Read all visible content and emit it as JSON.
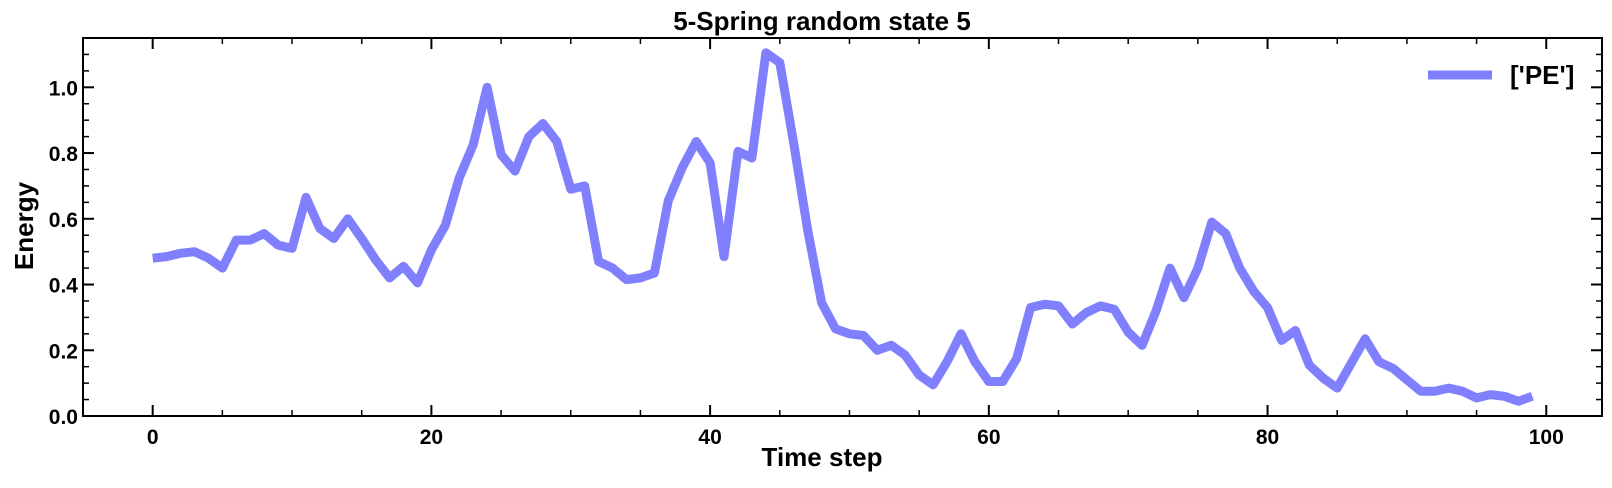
{
  "chart_data": {
    "type": "line",
    "title": "5-Spring random state 5",
    "xlabel": "Time step",
    "ylabel": "Energy",
    "xlim": [
      -5,
      104
    ],
    "ylim": [
      0,
      1.15
    ],
    "xticks": [
      0,
      20,
      40,
      60,
      80,
      100
    ],
    "xtick_labels": [
      "0",
      "20",
      "40",
      "60",
      "80",
      "100"
    ],
    "yticks": [
      0.0,
      0.2,
      0.4,
      0.6,
      0.8,
      1.0
    ],
    "ytick_labels": [
      "0.0",
      "0.2",
      "0.4",
      "0.6",
      "0.8",
      "1.0"
    ],
    "grid": false,
    "legend_position": "top-right",
    "series": [
      {
        "name": "['PE']",
        "color": "#8080ff",
        "x": [
          0,
          1,
          2,
          3,
          4,
          5,
          6,
          7,
          8,
          9,
          10,
          11,
          12,
          13,
          14,
          15,
          16,
          17,
          18,
          19,
          20,
          21,
          22,
          23,
          24,
          25,
          26,
          27,
          28,
          29,
          30,
          31,
          32,
          33,
          34,
          35,
          36,
          37,
          38,
          39,
          40,
          41,
          42,
          43,
          44,
          45,
          46,
          47,
          48,
          49,
          50,
          51,
          52,
          53,
          54,
          55,
          56,
          57,
          58,
          59,
          60,
          61,
          62,
          63,
          64,
          65,
          66,
          67,
          68,
          69,
          70,
          71,
          72,
          73,
          74,
          75,
          76,
          77,
          78,
          79,
          80,
          81,
          82,
          83,
          84,
          85,
          86,
          87,
          88,
          89,
          90,
          91,
          92,
          93,
          94,
          95,
          96,
          97,
          98,
          99
        ],
        "y": [
          0.48,
          0.485,
          0.495,
          0.5,
          0.48,
          0.45,
          0.535,
          0.535,
          0.555,
          0.52,
          0.51,
          0.665,
          0.57,
          0.54,
          0.6,
          0.54,
          0.475,
          0.42,
          0.455,
          0.405,
          0.505,
          0.58,
          0.725,
          0.825,
          1.0,
          0.795,
          0.745,
          0.85,
          0.89,
          0.835,
          0.69,
          0.7,
          0.47,
          0.45,
          0.415,
          0.42,
          0.435,
          0.655,
          0.755,
          0.835,
          0.77,
          0.485,
          0.805,
          0.785,
          1.105,
          1.075,
          0.83,
          0.565,
          0.345,
          0.265,
          0.25,
          0.245,
          0.2,
          0.215,
          0.185,
          0.125,
          0.095,
          0.165,
          0.25,
          0.165,
          0.105,
          0.105,
          0.175,
          0.33,
          0.34,
          0.335,
          0.28,
          0.315,
          0.335,
          0.325,
          0.255,
          0.215,
          0.32,
          0.45,
          0.36,
          0.45,
          0.59,
          0.555,
          0.45,
          0.38,
          0.33,
          0.23,
          0.26,
          0.155,
          0.115,
          0.085,
          0.16,
          0.235,
          0.165,
          0.145,
          0.11,
          0.075,
          0.075,
          0.085,
          0.075,
          0.055,
          0.065,
          0.06,
          0.045,
          0.06
        ]
      }
    ]
  }
}
